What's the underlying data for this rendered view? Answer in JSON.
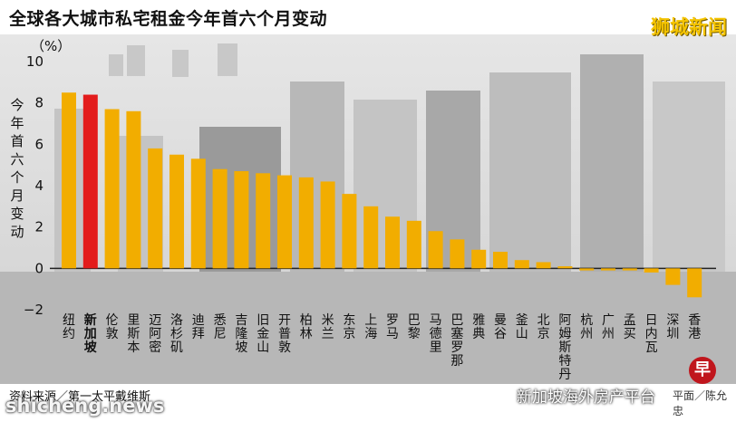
{
  "header": {
    "title": "全球各大城市私宅租金今年首六个月变动",
    "brand": "狮城新闻"
  },
  "footer": {
    "source": "资料来源／第一太平戴维斯",
    "watermark_left": "shicheng.news",
    "watermark_right": "新加坡海外房产平台",
    "credit": "平面／陈允忠",
    "logo_glyph": "早"
  },
  "colors": {
    "bar": "#f2ad00",
    "highlight": "#e31c1c",
    "axis": "#222222",
    "background": "photo of city skyline (greyscale)"
  },
  "chart_data": {
    "type": "bar",
    "unit_label": "（%）",
    "ylabel": "今年首六个月变动",
    "ylim": [
      -2,
      10
    ],
    "yticks": [
      -2,
      0,
      2,
      4,
      6,
      8,
      10
    ],
    "highlight_category": "新加坡",
    "categories": [
      "纽约",
      "新加坡",
      "伦敦",
      "里斯本",
      "迈阿密",
      "洛杉矶",
      "迪拜",
      "悉尼",
      "吉隆坡",
      "旧金山",
      "开普敦",
      "柏林",
      "米兰",
      "东京",
      "上海",
      "罗马",
      "巴黎",
      "马德里",
      "巴塞罗那",
      "雅典",
      "曼谷",
      "釜山",
      "北京",
      "阿姆斯特丹",
      "杭州",
      "广州",
      "孟买",
      "日内瓦",
      "深圳",
      "香港"
    ],
    "values": [
      8.5,
      8.4,
      7.7,
      7.6,
      5.8,
      5.5,
      5.3,
      4.8,
      4.7,
      4.6,
      4.5,
      4.4,
      4.2,
      3.6,
      3.0,
      2.5,
      2.3,
      1.8,
      1.4,
      0.9,
      0.8,
      0.4,
      0.3,
      0.1,
      -0.1,
      -0.1,
      -0.1,
      -0.2,
      -0.8,
      -1.4
    ]
  }
}
